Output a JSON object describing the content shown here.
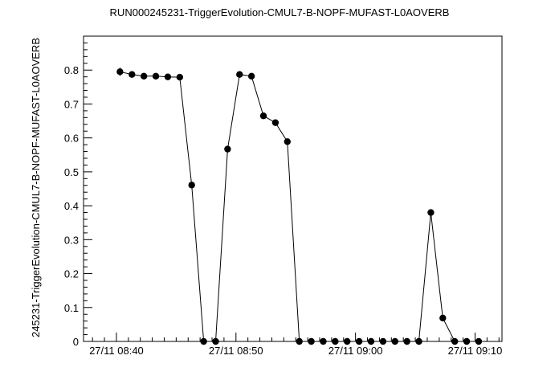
{
  "chart_data": {
    "type": "scatter",
    "title": "RUN000245231-TriggerEvolution-CMUL7-B-NOPF-MUFAST-L0AOVERB",
    "xlabel": "",
    "ylabel": "245231-TriggerEvolution-CMUL7-B-NOPF-MUFAST-L0AOVERB",
    "x_tick_labels": [
      "27/11 08:40",
      "27/11 08:50",
      "27/11 09:00",
      "27/11 09:10"
    ],
    "x_tick_minutes": [
      0,
      10,
      20,
      30
    ],
    "xlim": [
      -2.75,
      32.25
    ],
    "y_ticks": [
      "0",
      "0.1",
      "0.2",
      "0.3",
      "0.4",
      "0.5",
      "0.6",
      "0.7",
      "0.8"
    ],
    "ylim": [
      0,
      0.9
    ],
    "grid": false,
    "legend": "none",
    "marker_color": "#000000",
    "line_color": "#000000",
    "series": [
      {
        "x_minutes": [
          0.3,
          1.3,
          2.3,
          3.3,
          4.3,
          5.3,
          6.3,
          7.3,
          8.3,
          9.3,
          10.3,
          11.3,
          12.3,
          13.3,
          14.3,
          15.3,
          16.3,
          17.3,
          18.3,
          19.3,
          20.3,
          21.3,
          22.3,
          23.3,
          24.3,
          25.3,
          26.3,
          27.3,
          28.3,
          29.3,
          30.3
        ],
        "y": [
          0.795,
          0.787,
          0.782,
          0.782,
          0.78,
          0.779,
          0.461,
          0.0,
          0.0,
          0.567,
          0.787,
          0.782,
          0.665,
          0.645,
          0.589,
          0.0,
          0.0,
          0.0,
          0.0,
          0.0,
          0.0,
          0.0,
          0.0,
          0.0,
          0.0,
          0.0,
          0.38,
          0.069,
          0.0,
          0.0,
          0.0
        ],
        "y_err": [
          0.012,
          0.007,
          0.006,
          0.006,
          0.006,
          0.006,
          0.008,
          0.0,
          0.0,
          0.008,
          0.006,
          0.006,
          0.007,
          0.007,
          0.007,
          0.0,
          0.0,
          0.0,
          0.0,
          0.0,
          0.0,
          0.0,
          0.0,
          0.0,
          0.0,
          0.0,
          0.008,
          0.005,
          0.0,
          0.0,
          0.0
        ]
      }
    ]
  }
}
